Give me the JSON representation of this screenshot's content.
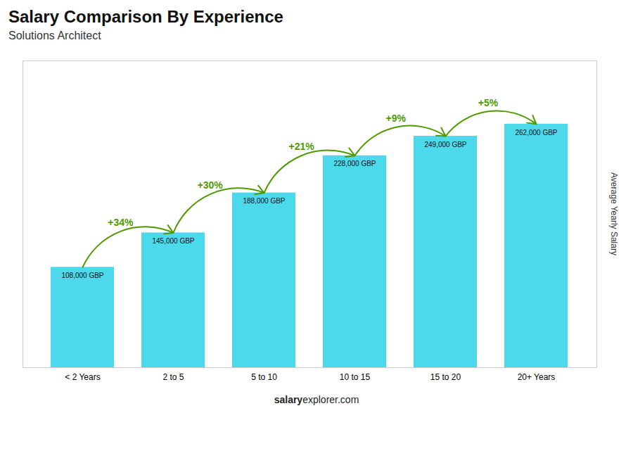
{
  "chart_data": {
    "type": "bar",
    "title": "Salary Comparison By Experience",
    "subtitle": "Solutions Architect",
    "ylabel": "Average Yearly Salary",
    "categories": [
      "< 2 Years",
      "2 to 5",
      "5 to 10",
      "10 to 15",
      "15 to 20",
      "20+ Years"
    ],
    "values": [
      108000,
      145000,
      188000,
      228000,
      249000,
      262000
    ],
    "value_labels": [
      "108,000 GBP",
      "145,000 GBP",
      "188,000 GBP",
      "228,000 GBP",
      "249,000 GBP",
      "262,000 GBP"
    ],
    "data_labels": true,
    "color": "#4dd9ec",
    "ylim": [
      0,
      330000
    ],
    "tick_labels": "x",
    "grid": false,
    "annotations": [
      {
        "text": "+34%",
        "from": "< 2 Years",
        "to": "2 to 5"
      },
      {
        "text": "+30%",
        "from": "2 to 5",
        "to": "5 to 10"
      },
      {
        "text": "+21%",
        "from": "5 to 10",
        "to": "10 to 15"
      },
      {
        "text": "+9%",
        "from": "10 to 15",
        "to": "15 to 20"
      },
      {
        "text": "+5%",
        "from": "15 to 20",
        "to": "20+ Years"
      }
    ],
    "footer": [
      "salary",
      "explorer.com"
    ]
  }
}
